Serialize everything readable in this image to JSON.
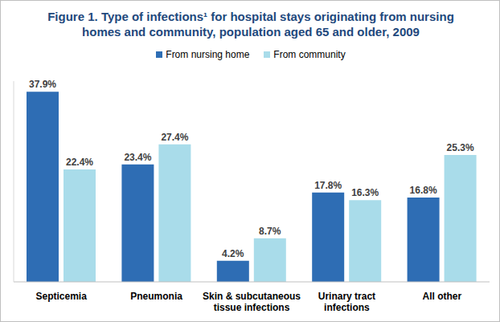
{
  "chart_data": {
    "type": "bar",
    "title": "Figure 1. Type of infections¹ for hospital stays originating from nursing homes and community, population aged 65 and older, 2009",
    "categories": [
      "Septicemia",
      "Pneumonia",
      "Skin & subcutaneous tissue infections",
      "Urinary tract infections",
      "All other"
    ],
    "series": [
      {
        "name": "From nursing home",
        "color": "#2E6DB4",
        "values": [
          37.9,
          23.4,
          4.2,
          17.8,
          16.8
        ],
        "value_labels": [
          "37.9%",
          "23.4%",
          "4.2%",
          "17.8%",
          "16.8%"
        ]
      },
      {
        "name": "From community",
        "color": "#A9DCEA",
        "values": [
          22.4,
          27.4,
          8.7,
          16.3,
          25.3
        ],
        "value_labels": [
          "22.4%",
          "27.4%",
          "8.7%",
          "16.3%",
          "25.3%"
        ]
      }
    ],
    "ylim": [
      0,
      40
    ],
    "data_labels": true,
    "tick_labels": "x",
    "legend": "top"
  }
}
